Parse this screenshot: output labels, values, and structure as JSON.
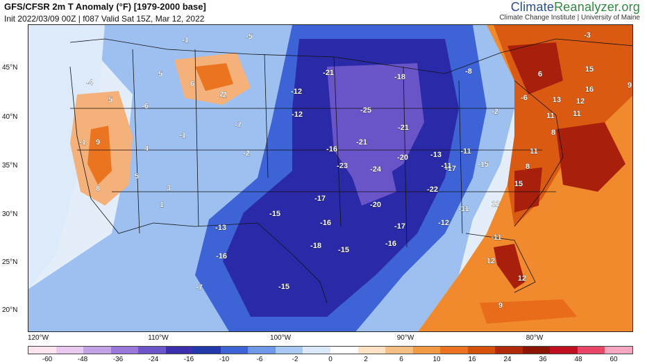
{
  "header": {
    "title": "GFS/CFSR 2m T Anomaly (°F) [1979-2000 base]",
    "subtitle": "Init 2022/03/09 00Z | f087 Valid Sat 15Z, Mar 12, 2022"
  },
  "brand": {
    "name_part1": "Climate",
    "name_part2": "Reanalyzer",
    "name_part3": ".org",
    "tagline": "Climate Change Institute | University of Maine"
  },
  "map": {
    "lat_labels": [
      "45°N",
      "40°N",
      "35°N",
      "30°N",
      "25°N",
      "20°N"
    ],
    "lon_labels": [
      "120°W",
      "110°W",
      "100°W",
      "90°W",
      "80°W"
    ],
    "anomaly_values": [
      "-21",
      "-18",
      "-12",
      "-12",
      "-25",
      "-21",
      "-21",
      "-16",
      "-23",
      "-24",
      "-20",
      "-13",
      "-11",
      "-17",
      "-15",
      "-22",
      "-17",
      "-20",
      "-15",
      "-16",
      "-17",
      "-12",
      "-13",
      "-18",
      "-15",
      "-16",
      "-16",
      "-15",
      "-11",
      "-11",
      "-5",
      "-2",
      "-1",
      "-4",
      "-6",
      "-8",
      "-7",
      "-1",
      "-2",
      "5",
      "6",
      "5",
      "9",
      "4",
      "5",
      "8",
      "2",
      "1",
      "3",
      "-6",
      "-2",
      "-1",
      "15",
      "16",
      "9",
      "6",
      "13",
      "12",
      "11",
      "11",
      "8",
      "11",
      "8",
      "15",
      "12",
      "12",
      "12",
      "9",
      "-7",
      "-11",
      "-3"
    ],
    "colors": {
      "deep_blue": "#2a2aa8",
      "purple": "#6a55c8",
      "mid_blue": "#3d63d6",
      "light_blue": "#9dc0f0",
      "pale": "#e4eefb",
      "orange": "#f08a2c",
      "dark_orange": "#d95a10",
      "red_brown": "#a8200c"
    }
  },
  "colorbar": {
    "ticks": [
      "-60",
      "-48",
      "-36",
      "-24",
      "-16",
      "-10",
      "-6",
      "-2",
      "0",
      "2",
      "6",
      "10",
      "16",
      "24",
      "36",
      "48",
      "60"
    ],
    "colors": [
      "#fbe3ef",
      "#e9c8ef",
      "#c4a2e6",
      "#9a78db",
      "#6c55c8",
      "#3b2fb0",
      "#2338a8",
      "#3d63d6",
      "#6f97e8",
      "#a8c8f3",
      "#dbe9fb",
      "#ffffff",
      "#fde2c6",
      "#f9c084",
      "#f39a44",
      "#ea7420",
      "#d6510c",
      "#b32a08",
      "#8e1506",
      "#c01020",
      "#e8476a",
      "#f7a7c0"
    ]
  }
}
